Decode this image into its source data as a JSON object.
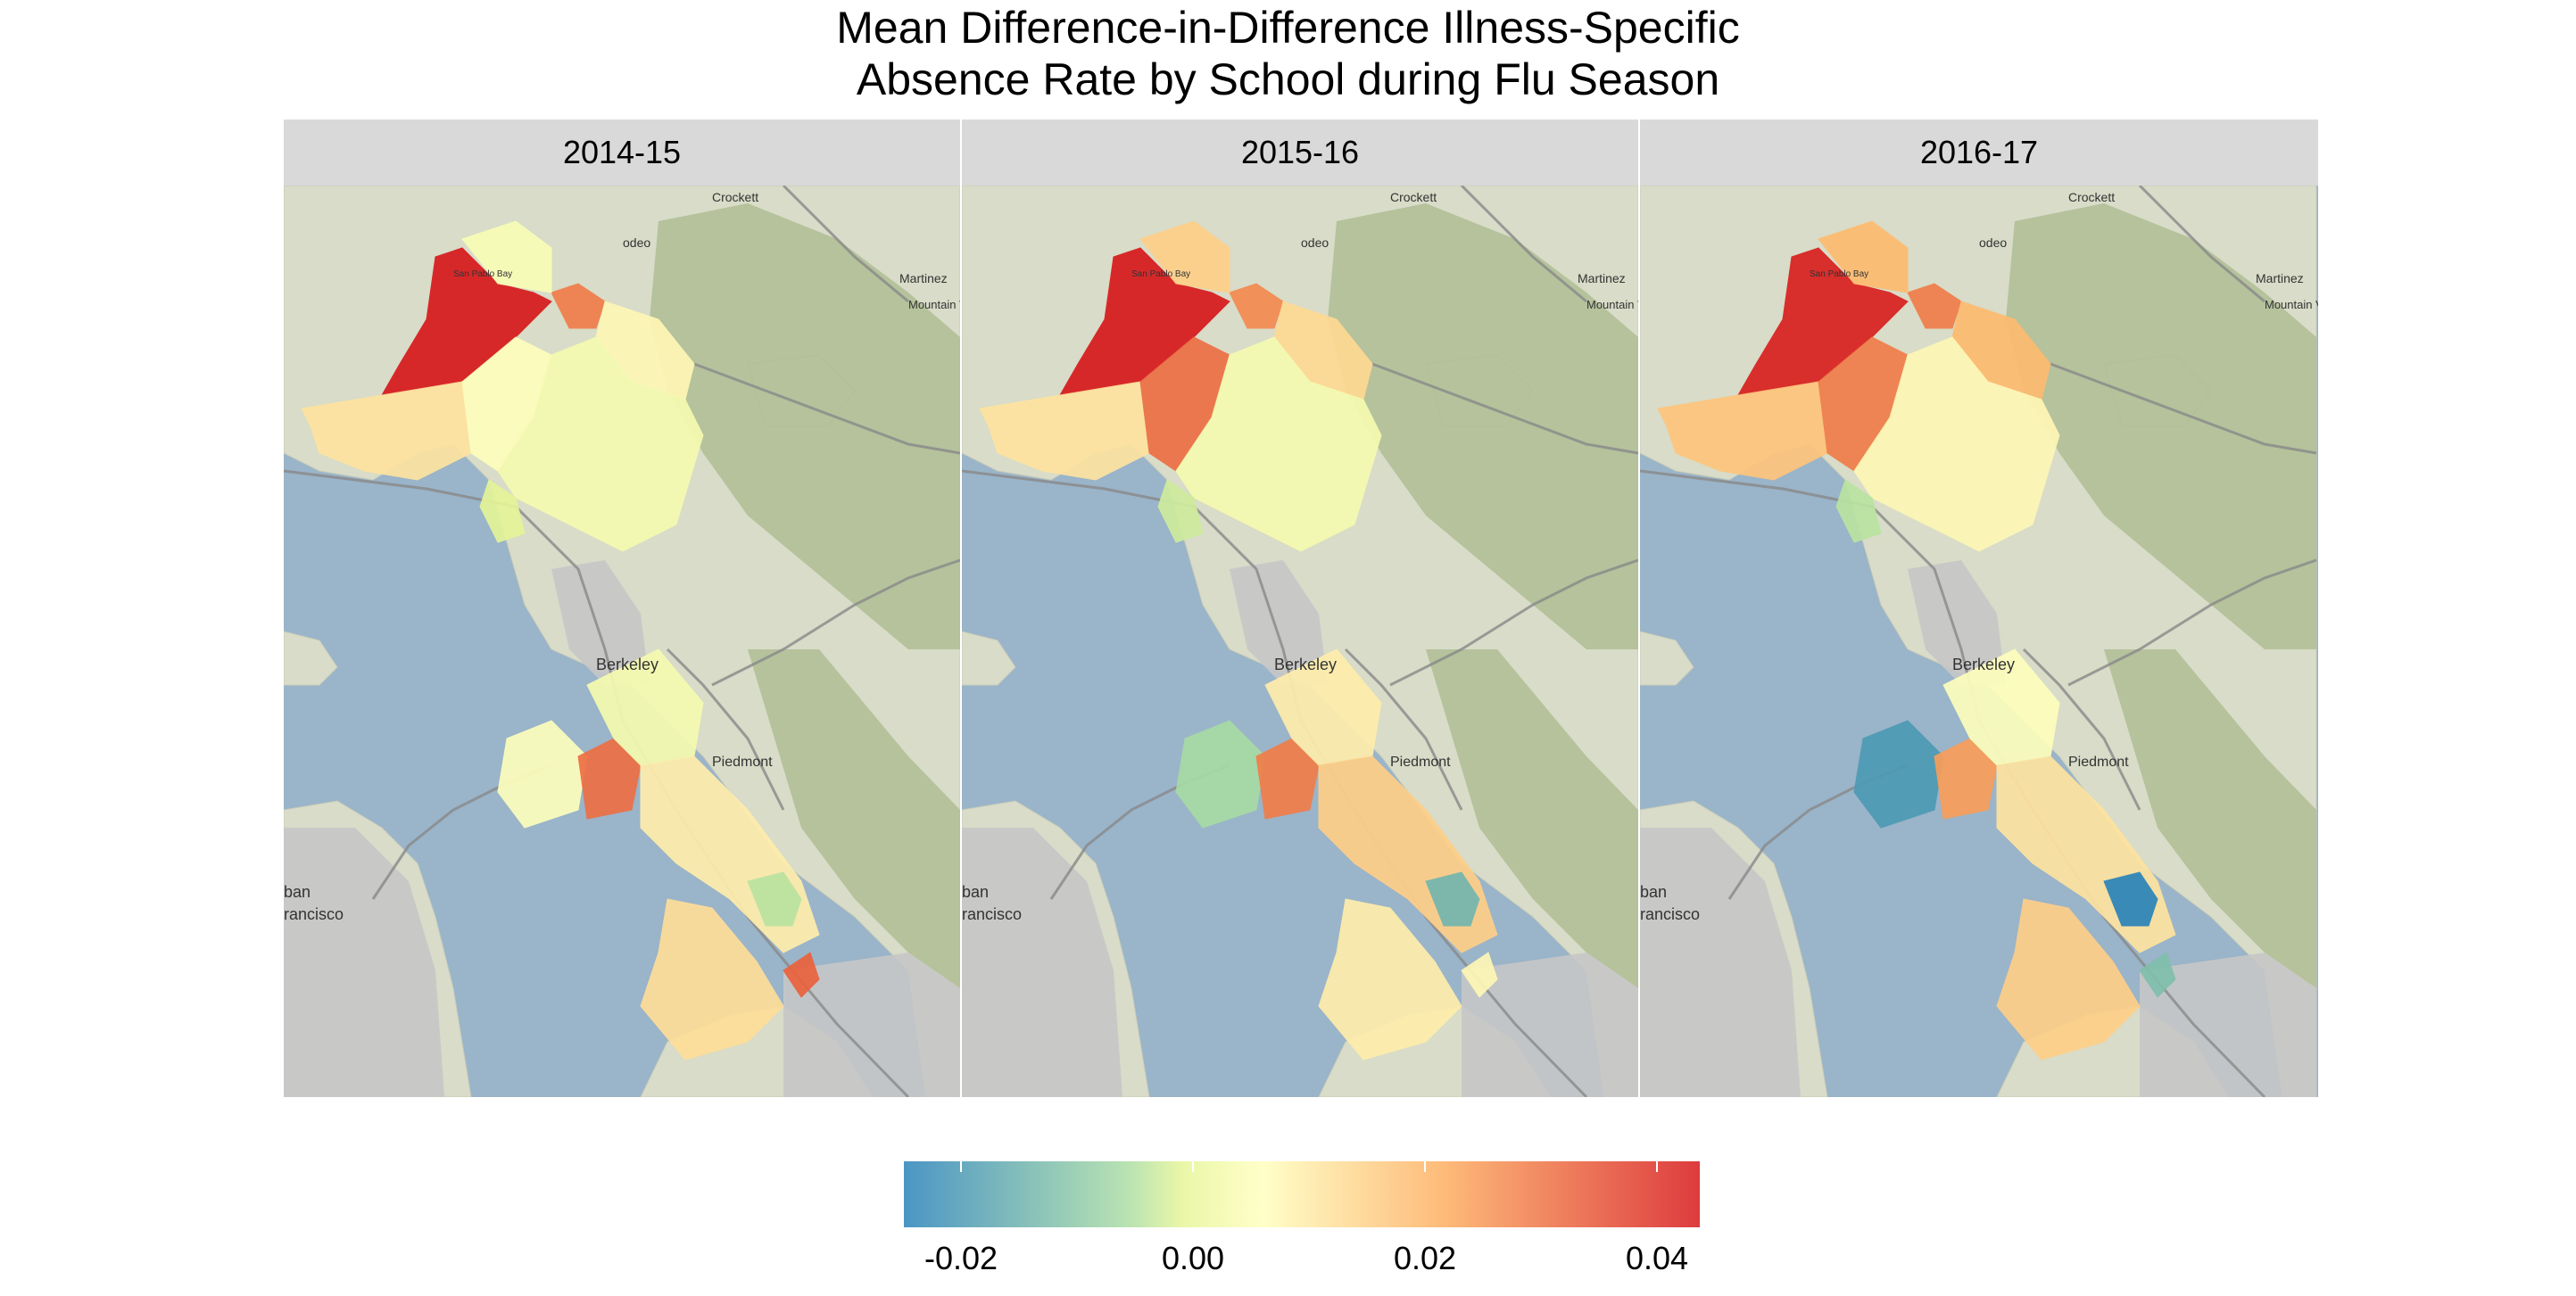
{
  "title": {
    "line1": "Mean Difference-in-Difference Illness-Specific",
    "line2": "Absence Rate by School during Flu Season"
  },
  "panels": [
    {
      "label": "2014-15"
    },
    {
      "label": "2015-16"
    },
    {
      "label": "2016-17"
    }
  ],
  "map_labels": {
    "bay": "San Pablo Bay",
    "rodeo": "odeo",
    "crockett": "Crockett",
    "martinez": "Martinez",
    "mountain_view": "Mountain View",
    "berkeley": "Berkeley",
    "piedmont": "Piedmont",
    "sf1": "ban",
    "sf2": "rancisco"
  },
  "legend": {
    "ticks": [
      "-0.02",
      "0.00",
      "0.02",
      "0.04"
    ],
    "range": [
      -0.025,
      0.045
    ],
    "colors": {
      "low": "#2b83ba",
      "midlow": "#abdda4",
      "mid": "#ffffbf",
      "midhigh": "#fdae61",
      "high": "#d7191c"
    }
  },
  "school_values": {
    "2014-15": {
      "north_west_shore": 0.045,
      "north_hercules": 0.03,
      "north_pinole": 0.008,
      "north_central": 0.005,
      "richmond_west": 0.012,
      "richmond_central": 0.006,
      "richmond_east": 0.004,
      "el_cerrito": 0.0,
      "oakland_west": 0.006,
      "oakland_central_hot": 0.032,
      "oakland_piedmont": 0.004,
      "oakland_east": 0.01,
      "oakland_south_green": -0.004,
      "alameda": 0.013,
      "san_leandro_hot": 0.034
    },
    "2015-16": {
      "north_west_shore": 0.046,
      "north_hercules": 0.028,
      "north_pinole": 0.014,
      "north_central": 0.016,
      "richmond_west": 0.012,
      "richmond_central": 0.032,
      "richmond_east": 0.004,
      "el_cerrito": -0.002,
      "oakland_west": -0.006,
      "oakland_central_hot": 0.03,
      "oakland_piedmont": 0.01,
      "oakland_east": 0.016,
      "oakland_south_green": -0.014,
      "alameda": 0.01,
      "san_leandro_hot": 0.008
    },
    "2016-17": {
      "north_west_shore": 0.044,
      "north_hercules": 0.03,
      "north_pinole": 0.02,
      "north_central": 0.02,
      "richmond_west": 0.018,
      "richmond_central": 0.03,
      "richmond_east": 0.008,
      "el_cerrito": -0.004,
      "oakland_west": -0.02,
      "oakland_central_hot": 0.025,
      "oakland_piedmont": 0.006,
      "oakland_east": 0.012,
      "oakland_south_green": -0.025,
      "alameda": 0.016,
      "san_leandro_hot": -0.012
    }
  }
}
